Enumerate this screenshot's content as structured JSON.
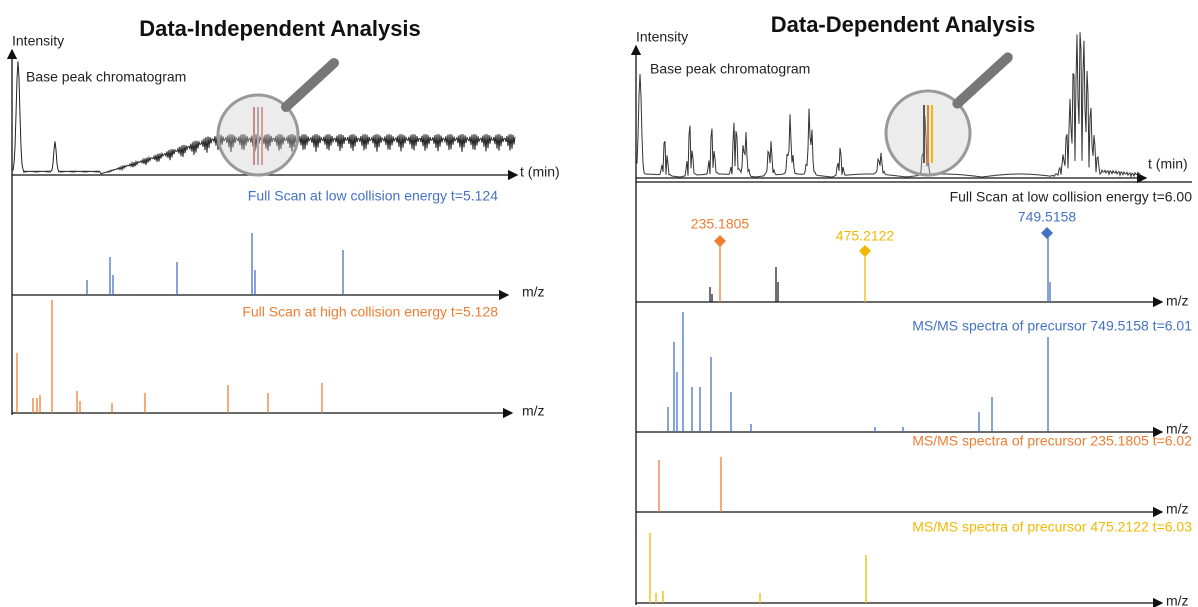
{
  "left": {
    "title": "Data-Independent Analysis",
    "chromatogram": {
      "y_label": "Intensity",
      "label": "Base peak chromatogram",
      "x_label": "t (min)"
    },
    "spectra": [
      {
        "caption": "Full Scan at low collision energy t=5.124",
        "x_label": "m/z"
      },
      {
        "caption": "Full Scan at high collision energy t=5.128",
        "x_label": "m/z"
      }
    ]
  },
  "right": {
    "title": "Data-Dependent Analysis",
    "chromatogram": {
      "y_label": "Intensity",
      "label": "Base peak chromatogram",
      "x_label": "t (min)"
    },
    "full_scan": {
      "caption": "Full Scan at low collision energy t=6.00",
      "x_label": "m/z",
      "precursors": [
        "235.1805",
        "475.2122",
        "749.5158"
      ]
    },
    "spectra": [
      {
        "caption": "MS/MS spectra of precursor 749.5158 t=6.01",
        "x_label": "m/z"
      },
      {
        "caption": "MS/MS spectra of precursor 235.1805 t=6.02",
        "x_label": "m/z"
      },
      {
        "caption": "MS/MS spectra of precursor 475.2122 t=6.03",
        "x_label": "m/z"
      }
    ]
  }
}
